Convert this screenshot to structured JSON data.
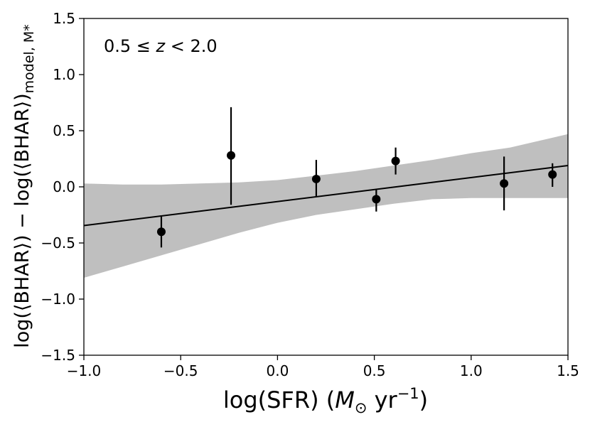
{
  "chart_data": {
    "type": "scatter",
    "annotation": {
      "main": "0.5 ≤ z < 2.0",
      "pre": "0.5 ≤ ",
      "var": "z",
      "post": " < 2.0"
    },
    "xlabel": {
      "full": "log(SFR) (M⊙ yr−1)",
      "pre": "log(SFR) (",
      "var": "M",
      "sub": "⊙",
      "mid": " yr",
      "sup": "−1",
      "post": ")"
    },
    "ylabel": {
      "full": "log(⟨BHAR⟩) − log(⟨BHAR⟩)model, M*",
      "main": "log(⟨BHAR⟩) − log(⟨BHAR⟩)",
      "sub": "model, M*"
    },
    "xlim": [
      -1.0,
      1.5
    ],
    "ylim": [
      -1.5,
      1.5
    ],
    "xticks": [
      -1.0,
      -0.5,
      0.0,
      0.5,
      1.0,
      1.5
    ],
    "xtick_labels": [
      "−1.0",
      "−0.5",
      "0.0",
      "0.5",
      "1.0",
      "1.5"
    ],
    "yticks": [
      -1.5,
      -1.0,
      -0.5,
      0.0,
      0.5,
      1.0,
      1.5
    ],
    "ytick_labels": [
      "−1.5",
      "−1.0",
      "−0.5",
      "0.0",
      "0.5",
      "1.0",
      "1.5"
    ],
    "points": [
      {
        "x": -0.6,
        "y": -0.4,
        "ylo": -0.54,
        "yhi": -0.26
      },
      {
        "x": -0.24,
        "y": 0.28,
        "ylo": -0.16,
        "yhi": 0.71
      },
      {
        "x": 0.2,
        "y": 0.07,
        "ylo": -0.09,
        "yhi": 0.24
      },
      {
        "x": 0.51,
        "y": -0.11,
        "ylo": -0.22,
        "yhi": -0.02
      },
      {
        "x": 0.61,
        "y": 0.23,
        "ylo": 0.11,
        "yhi": 0.35
      },
      {
        "x": 1.17,
        "y": 0.03,
        "ylo": -0.21,
        "yhi": 0.27
      },
      {
        "x": 1.42,
        "y": 0.11,
        "ylo": 0.0,
        "yhi": 0.21
      }
    ],
    "fit_line": {
      "x": [
        -1.0,
        1.5
      ],
      "y": [
        -0.345,
        0.19
      ]
    },
    "band": {
      "x": [
        -1.0,
        -0.8,
        -0.6,
        -0.4,
        -0.2,
        0.0,
        0.2,
        0.4,
        0.6,
        0.8,
        1.0,
        1.2,
        1.4,
        1.5
      ],
      "upper": [
        0.03,
        0.02,
        0.02,
        0.03,
        0.04,
        0.06,
        0.1,
        0.14,
        0.19,
        0.24,
        0.3,
        0.35,
        0.43,
        0.47
      ],
      "lower": [
        -0.81,
        -0.71,
        -0.61,
        -0.51,
        -0.41,
        -0.32,
        -0.25,
        -0.2,
        -0.15,
        -0.11,
        -0.1,
        -0.1,
        -0.1,
        -0.1
      ]
    },
    "colors": {
      "band": "#bfbfbf",
      "line": "#000000",
      "marker": "#000000"
    }
  }
}
